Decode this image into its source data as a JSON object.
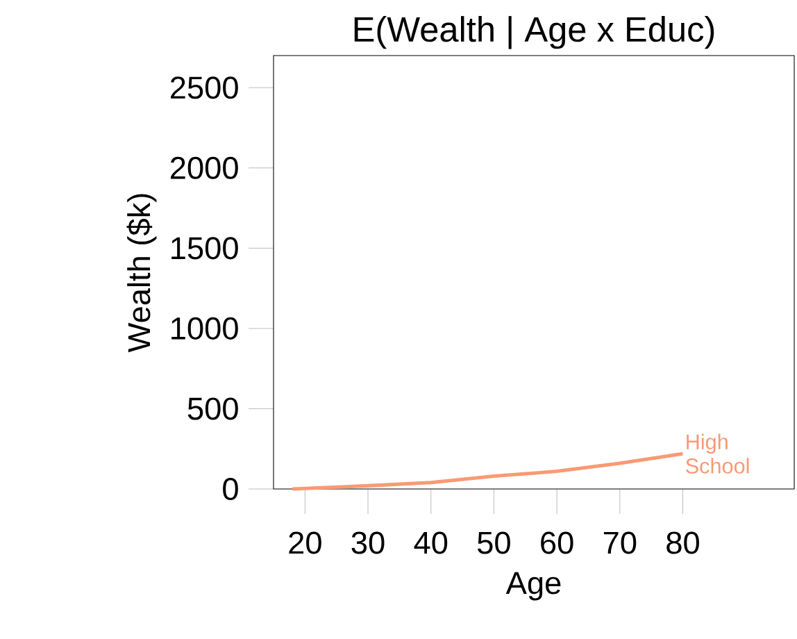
{
  "chart_data": {
    "type": "line",
    "title": "E(Wealth | Age x Educ)",
    "xlabel": "Age",
    "ylabel": "Wealth ($k)",
    "x": [
      18,
      30,
      40,
      50,
      60,
      70,
      80
    ],
    "series": [
      {
        "name": "High School",
        "color": "#f89a74",
        "values": [
          0,
          20,
          40,
          80,
          110,
          160,
          220
        ]
      }
    ],
    "xlim": [
      15,
      97.7
    ],
    "ylim": [
      0,
      2700
    ],
    "xticks": [
      20,
      30,
      40,
      50,
      60,
      70,
      80
    ],
    "yticks": [
      0,
      500,
      1000,
      1500,
      2000,
      2500
    ],
    "grid": false,
    "legend": false,
    "marker": "none",
    "line_style": "solid"
  }
}
